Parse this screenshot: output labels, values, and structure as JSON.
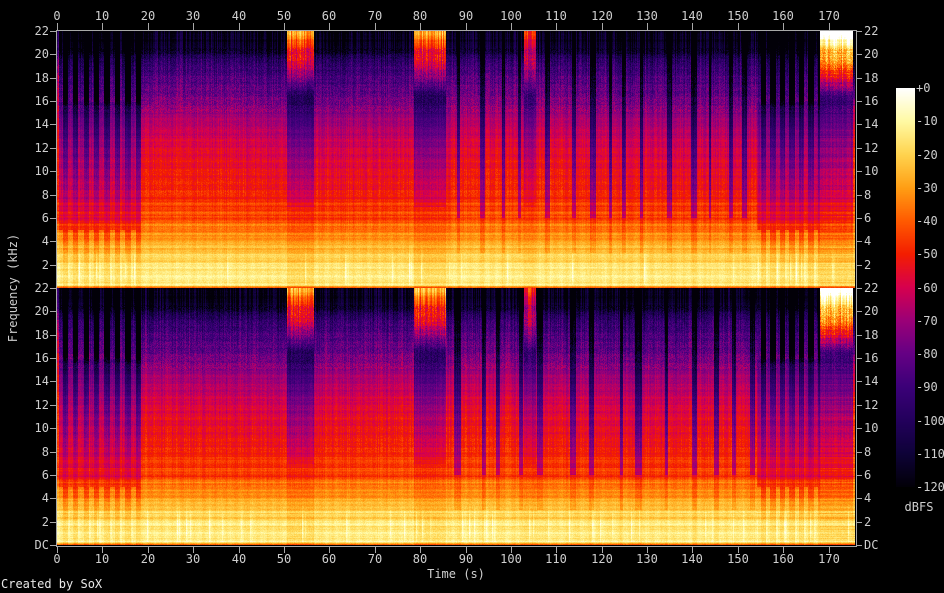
{
  "watermark": "Created by SoX",
  "colors": {
    "background": "#000000",
    "axis_line": "#a8a8a8",
    "tick_text": "#cfcfcf",
    "watermark_text": "#e8e8e8"
  },
  "chart_data": {
    "type": "heatmap",
    "subtype": "stereo-audio-spectrogram",
    "title": "",
    "xlabel": "Time (s)",
    "ylabel": "Frequency (kHz)",
    "channels": 2,
    "x_ticks": [
      0,
      10,
      20,
      30,
      40,
      50,
      60,
      70,
      80,
      90,
      100,
      110,
      120,
      130,
      140,
      150,
      160,
      170
    ],
    "x_range_s": [
      0,
      175.8
    ],
    "freq_range_khz": [
      0,
      22
    ],
    "y_tick_labels_per_channel": [
      "22",
      "20",
      "18",
      "16",
      "14",
      "12",
      "10",
      "8",
      "6",
      "4",
      "2"
    ],
    "y_bottom_tick_label": "DC",
    "grid": false,
    "legend_position": "right-colorbar",
    "colorbar": {
      "label": "dBFS",
      "range_db": [
        0,
        -120
      ],
      "tick_labels": [
        "+0",
        "-10",
        "-20",
        "-30",
        "-40",
        "-50",
        "-60",
        "-70",
        "-80",
        "-90",
        "-100",
        "-110",
        "-120"
      ],
      "palette": [
        {
          "p": 0.0,
          "color": "#020008"
        },
        {
          "p": 0.0833,
          "color": "#0e0238"
        },
        {
          "p": 0.1667,
          "color": "#23005c"
        },
        {
          "p": 0.25,
          "color": "#3b0078"
        },
        {
          "p": 0.3333,
          "color": "#650084"
        },
        {
          "p": 0.4167,
          "color": "#9b0077"
        },
        {
          "p": 0.5,
          "color": "#d6004e"
        },
        {
          "p": 0.5833,
          "color": "#f31d00"
        },
        {
          "p": 0.6667,
          "color": "#ff5a00"
        },
        {
          "p": 0.75,
          "color": "#ff9e14"
        },
        {
          "p": 0.8333,
          "color": "#ffd34e"
        },
        {
          "p": 0.9167,
          "color": "#fff9a3"
        },
        {
          "p": 1.0,
          "color": "#ffffff"
        }
      ]
    },
    "spectral_profile_db": [
      [
        0.0,
        -50
      ],
      [
        0.3,
        -15
      ],
      [
        1.0,
        -13
      ],
      [
        2.0,
        -16
      ],
      [
        3.0,
        -21
      ],
      [
        4.0,
        -28
      ],
      [
        5.0,
        -34
      ],
      [
        6.0,
        -40
      ],
      [
        7.0,
        -45
      ],
      [
        8.0,
        -49
      ],
      [
        10.0,
        -54
      ],
      [
        12.0,
        -58
      ],
      [
        14.0,
        -66
      ],
      [
        16.0,
        -76
      ],
      [
        18.0,
        -86
      ],
      [
        19.5,
        -96
      ],
      [
        20.3,
        -112
      ],
      [
        22.0,
        -118
      ]
    ],
    "sections": [
      {
        "t0": 0.0,
        "t1": 18.5,
        "kind": "stripes",
        "period_s": 2.3,
        "duty": 0.5
      },
      {
        "t0": 18.5,
        "t1": 50.5,
        "kind": "full",
        "choppy": false
      },
      {
        "t0": 50.5,
        "t1": 56.5,
        "kind": "break",
        "depth": 1.0
      },
      {
        "t0": 56.5,
        "t1": 78.5,
        "kind": "full",
        "choppy": false
      },
      {
        "t0": 78.5,
        "t1": 85.5,
        "kind": "break",
        "depth": 1.0
      },
      {
        "t0": 85.5,
        "t1": 102.8,
        "kind": "full",
        "choppy": true
      },
      {
        "t0": 102.8,
        "t1": 105.5,
        "kind": "break",
        "depth": 0.75
      },
      {
        "t0": 105.5,
        "t1": 154.0,
        "kind": "full",
        "choppy": true
      },
      {
        "t0": 154.0,
        "t1": 168.0,
        "kind": "stripes",
        "period_s": 2.1,
        "duty": 0.42
      },
      {
        "t0": 168.0,
        "t1": 175.8,
        "kind": "fade"
      }
    ]
  }
}
